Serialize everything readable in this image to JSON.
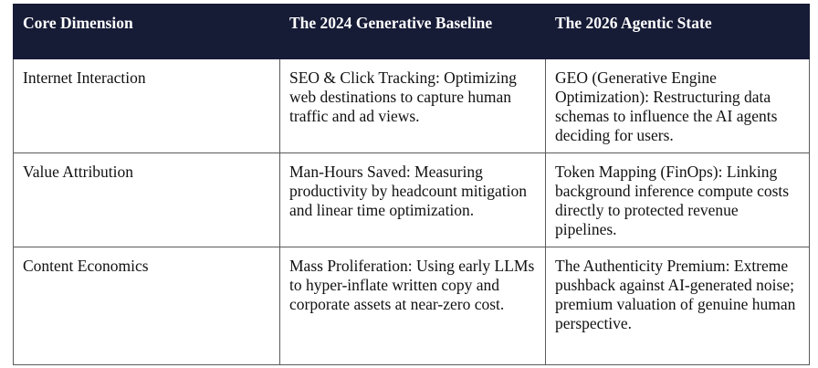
{
  "table": {
    "header": [
      "Core Dimension",
      "The 2024 Generative Baseline",
      "The 2026 Agentic State"
    ],
    "rows": [
      [
        "Internet Interaction",
        "SEO & Click Tracking: Optimizing web destinations to capture human traffic and ad views.",
        "GEO (Generative Engine Optimization): Restructuring data schemas to influence the AI agents deciding for users."
      ],
      [
        "Value Attribution",
        "Man-Hours Saved: Measuring productivity by headcount mitigation and linear time optimization.",
        "Token Mapping (FinOps): Linking background inference compute costs directly to protected revenue pipelines."
      ],
      [
        "Content Economics",
        "Mass Proliferation: Using early LLMs to hyper-inflate written copy and corporate assets at near-zero cost.",
        "The Authenticity Premium: Extreme pushback against AI-generated noise; premium valuation of genuine human perspective."
      ]
    ]
  }
}
